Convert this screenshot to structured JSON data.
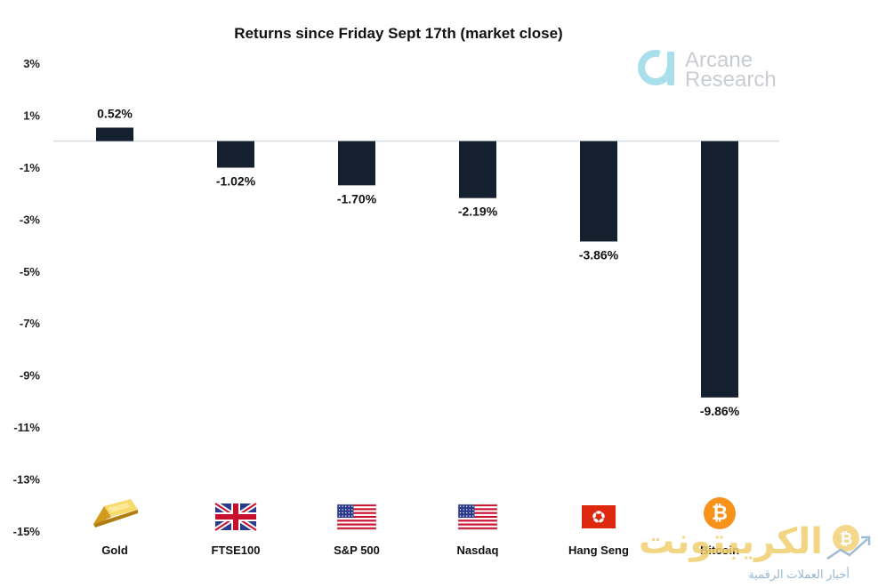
{
  "chart_data": {
    "type": "bar",
    "title": "Returns since Friday Sept 17th (market close)",
    "categories": [
      "Gold",
      "FTSE100",
      "S&P 500",
      "Nasdaq",
      "Hang Seng",
      "Bitcoin"
    ],
    "values": [
      0.52,
      -1.02,
      -1.7,
      -2.19,
      -3.86,
      -9.86
    ],
    "value_labels": [
      "0.52%",
      "-1.02%",
      "-1.70%",
      "-2.19%",
      "-3.86%",
      "-9.86%"
    ],
    "ylim": [
      -15,
      3
    ],
    "yticks": [
      3,
      1,
      -1,
      -3,
      -5,
      -7,
      -9,
      -11,
      -13,
      -15
    ],
    "ytick_labels": [
      "3%",
      "1%",
      "-1%",
      "-3%",
      "-5%",
      "-7%",
      "-9%",
      "-11%",
      "-13%",
      "-15%"
    ],
    "bar_color": "#14202e",
    "zero_line_color": "#d9dde2",
    "category_icons": [
      "gold-bar-icon",
      "uk-flag-icon",
      "us-flag-icon",
      "us-flag-icon",
      "hong-kong-flag-icon",
      "bitcoin-icon"
    ],
    "grid": false,
    "legend": "none"
  },
  "brand": {
    "line1": "Arcane",
    "line2": "Research",
    "color": "#9ad8e6"
  },
  "watermark": {
    "main": "الكريبتونت",
    "sub": "أخبار العملات الرقمية",
    "color": "#f1cf6f"
  }
}
